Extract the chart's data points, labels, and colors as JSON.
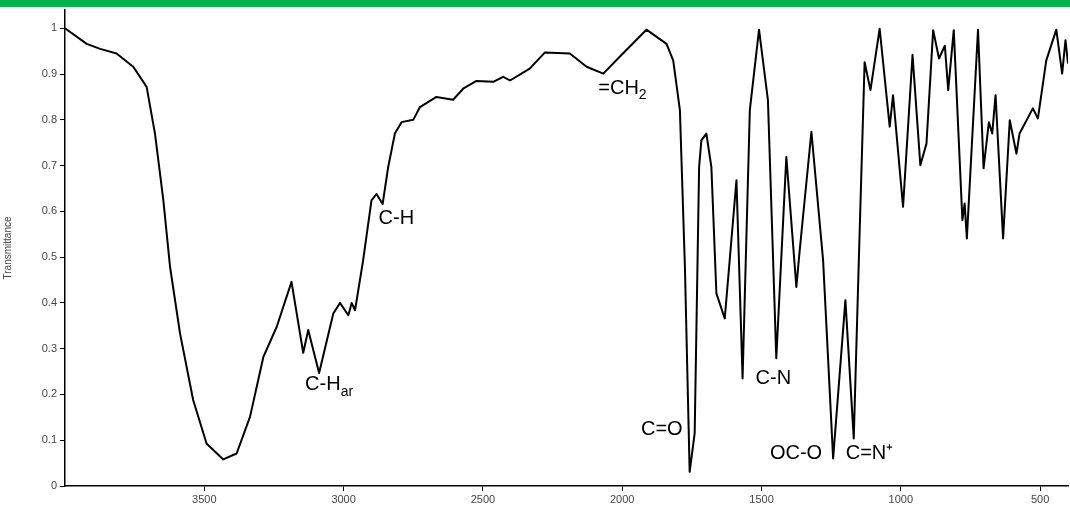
{
  "chart_data": {
    "type": "line",
    "ylabel": "Transmittance",
    "xlim": [
      4000,
      400
    ],
    "xticks": [
      3500,
      3000,
      2500,
      2000,
      1500,
      1000,
      500
    ],
    "ylim": [
      0,
      1.04
    ],
    "yticks": [
      0,
      0.1,
      0.2,
      0.3,
      0.4,
      0.5,
      0.6,
      0.7,
      0.8,
      0.9,
      1
    ],
    "grid": false,
    "legend": false,
    "marker": "none",
    "line_style": "solid",
    "series": [
      {
        "color": "#000000",
        "x": [
          4000,
          3922,
          3874,
          3815,
          3755,
          3707,
          3677,
          3647,
          3623,
          3587,
          3540,
          3492,
          3432,
          3384,
          3336,
          3288,
          3240,
          3187,
          3145,
          3127,
          3088,
          3037,
          3013,
          2983,
          2971,
          2959,
          2930,
          2900,
          2882,
          2860,
          2840,
          2816,
          2792,
          2750,
          2726,
          2667,
          2607,
          2571,
          2523,
          2463,
          2427,
          2403,
          2332,
          2278,
          2188,
          2128,
          2068,
          2009,
          1913,
          1841,
          1817,
          1793,
          1775,
          1758,
          1740,
          1724,
          1716,
          1698,
          1680,
          1662,
          1632,
          1590,
          1568,
          1542,
          1509,
          1477,
          1447,
          1411,
          1375,
          1363,
          1321,
          1279,
          1243,
          1199,
          1169,
          1148,
          1130,
          1109,
          1076,
          1040,
          1028,
          992,
          958,
          930,
          908,
          884,
          863,
          842,
          830,
          810,
          779,
          771,
          763,
          723,
          703,
          684,
          672,
          660,
          633,
          609,
          585,
          574,
          526,
          508,
          478,
          442,
          421,
          409,
          400
        ],
        "values": [
          1.0,
          0.966,
          0.955,
          0.945,
          0.916,
          0.872,
          0.77,
          0.624,
          0.479,
          0.333,
          0.188,
          0.093,
          0.058,
          0.071,
          0.151,
          0.282,
          0.348,
          0.446,
          0.291,
          0.341,
          0.247,
          0.377,
          0.4,
          0.373,
          0.4,
          0.384,
          0.493,
          0.624,
          0.638,
          0.616,
          0.697,
          0.77,
          0.795,
          0.8,
          0.828,
          0.85,
          0.844,
          0.868,
          0.885,
          0.883,
          0.894,
          0.886,
          0.912,
          0.947,
          0.945,
          0.916,
          0.901,
          0.938,
          0.997,
          0.966,
          0.93,
          0.821,
          0.479,
          0.031,
          0.115,
          0.697,
          0.755,
          0.77,
          0.697,
          0.421,
          0.366,
          0.668,
          0.235,
          0.821,
          0.997,
          0.843,
          0.279,
          0.719,
          0.435,
          0.515,
          0.774,
          0.493,
          0.06,
          0.406,
          0.104,
          0.552,
          0.926,
          0.865,
          0.999,
          0.785,
          0.854,
          0.61,
          0.942,
          0.701,
          0.748,
          0.996,
          0.934,
          0.962,
          0.865,
          0.996,
          0.581,
          0.617,
          0.541,
          0.997,
          0.694,
          0.795,
          0.77,
          0.854,
          0.541,
          0.799,
          0.726,
          0.77,
          0.825,
          0.803,
          0.93,
          0.997,
          0.901,
          0.974,
          0.923
        ]
      }
    ],
    "annotations": [
      {
        "text": "C-H$_{ar}$",
        "x": 3088,
        "y": 0.247
      },
      {
        "text": "C-H",
        "x": 2860,
        "y": 0.616
      },
      {
        "text": "=CH$_{2}$",
        "x": 2068,
        "y": 0.901
      },
      {
        "text": "C=O",
        "x": 1758,
        "y": 0.031
      },
      {
        "text": "C-N",
        "x": 1568,
        "y": 0.235
      },
      {
        "text": "OC-O",
        "x": 1243,
        "y": 0.06
      },
      {
        "text": "C=N⁺",
        "x": 1169,
        "y": 0.104
      }
    ]
  }
}
